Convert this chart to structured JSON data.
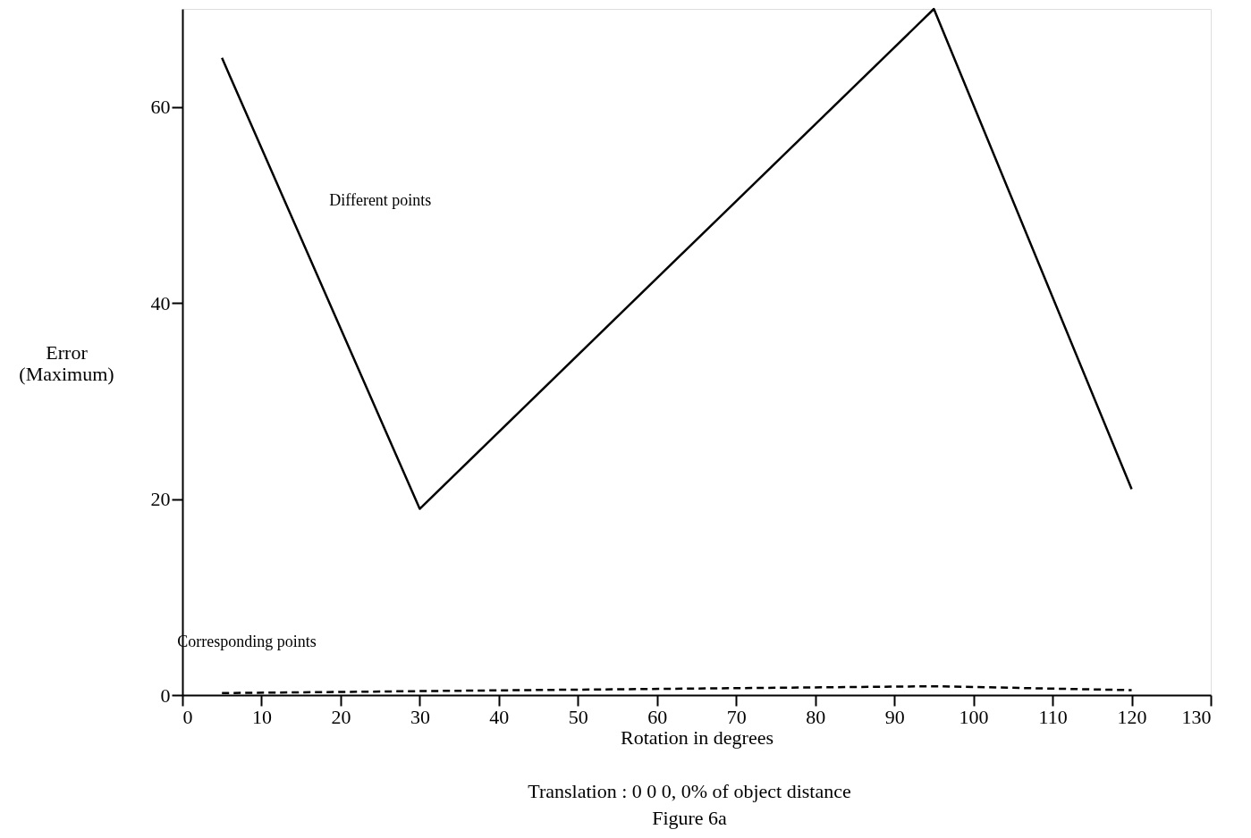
{
  "chart_data": {
    "type": "line",
    "xlabel": "Rotation in degrees",
    "ylabel": "Error\n(Maximum)",
    "xlim": [
      0,
      130
    ],
    "xticks": [
      0,
      10,
      20,
      30,
      40,
      50,
      60,
      70,
      80,
      90,
      100,
      110,
      120,
      130
    ],
    "ylim": [
      0,
      70
    ],
    "yticks": [
      0,
      20,
      40,
      60
    ],
    "grid": false,
    "marker": "none",
    "series": [
      {
        "name": "Different points",
        "color": "#000000",
        "line_style": "solid",
        "x": [
          5,
          30,
          95,
          120
        ],
        "values": [
          65,
          19,
          70,
          21
        ]
      },
      {
        "name": "Corresponding points",
        "color": "#000000",
        "line_style": "dashed",
        "x": [
          5,
          30,
          95,
          120
        ],
        "values": [
          0.2,
          0.4,
          0.9,
          0.5
        ]
      }
    ],
    "annotations": [
      "Translation : 0 0 0, 0% of object distance",
      "Figure 6a"
    ]
  }
}
